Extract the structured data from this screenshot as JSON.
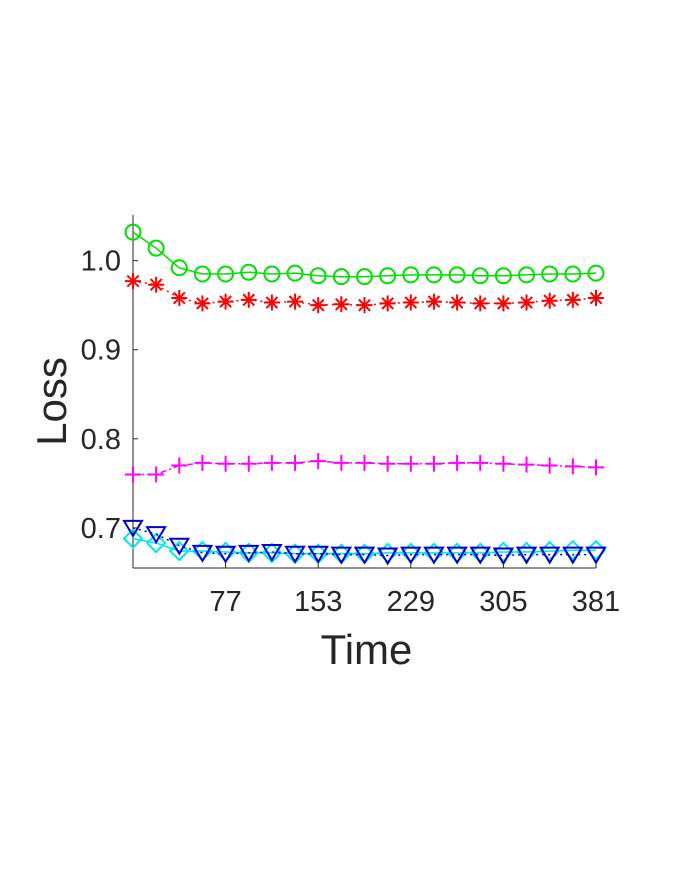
{
  "chart_data": {
    "type": "line",
    "title": "",
    "xlabel": "Time",
    "ylabel": "Loss",
    "xlim": [
      1,
      381
    ],
    "ylim": [
      0.655,
      1.04
    ],
    "xticks": [
      77,
      153,
      229,
      305,
      381
    ],
    "xtick_labels": [
      "77",
      "153",
      "229",
      "305",
      "381"
    ],
    "yticks": [
      0.7,
      0.8,
      0.9,
      1.0
    ],
    "ytick_labels": [
      "0.7",
      "0.8",
      "0.9",
      "1.0"
    ],
    "grid": false,
    "legend": null,
    "x": [
      1,
      20,
      39,
      58,
      77,
      96,
      115,
      134,
      153,
      172,
      191,
      210,
      229,
      248,
      267,
      286,
      305,
      324,
      343,
      362,
      381
    ],
    "series": [
      {
        "color": "#00e000",
        "marker": "circle",
        "line_style": "solid",
        "values": [
          1.032,
          1.014,
          0.992,
          0.985,
          0.985,
          0.987,
          0.985,
          0.986,
          0.983,
          0.982,
          0.982,
          0.983,
          0.984,
          0.984,
          0.984,
          0.983,
          0.983,
          0.984,
          0.985,
          0.985,
          0.986
        ]
      },
      {
        "color": "#ff0000",
        "marker": "asterisk",
        "line_style": "dotted",
        "values": [
          0.977,
          0.973,
          0.958,
          0.952,
          0.954,
          0.956,
          0.953,
          0.954,
          0.95,
          0.951,
          0.95,
          0.952,
          0.953,
          0.954,
          0.953,
          0.952,
          0.952,
          0.953,
          0.955,
          0.956,
          0.958
        ]
      },
      {
        "color": "#ff00ff",
        "marker": "plus",
        "line_style": "dash-dot",
        "values": [
          0.76,
          0.76,
          0.77,
          0.773,
          0.772,
          0.772,
          0.773,
          0.773,
          0.775,
          0.773,
          0.773,
          0.772,
          0.772,
          0.772,
          0.773,
          0.773,
          0.772,
          0.771,
          0.77,
          0.769,
          0.768
        ]
      },
      {
        "color": "#00e5ee",
        "marker": "diamond",
        "line_style": "solid",
        "values": [
          0.688,
          0.683,
          0.674,
          0.674,
          0.673,
          0.672,
          0.672,
          0.671,
          0.671,
          0.671,
          0.671,
          0.672,
          0.672,
          0.672,
          0.672,
          0.672,
          0.673,
          0.673,
          0.674,
          0.675,
          0.675
        ]
      },
      {
        "color": "#0000cc",
        "marker": "triangle-down",
        "line_style": "dotted",
        "values": [
          0.7,
          0.693,
          0.68,
          0.672,
          0.671,
          0.672,
          0.673,
          0.671,
          0.671,
          0.67,
          0.67,
          0.669,
          0.67,
          0.67,
          0.67,
          0.67,
          0.669,
          0.67,
          0.67,
          0.67,
          0.67
        ]
      }
    ]
  }
}
